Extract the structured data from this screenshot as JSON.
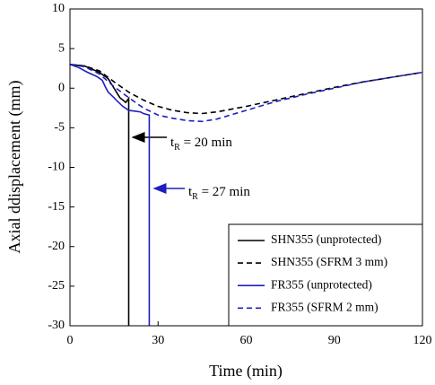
{
  "chart_data": {
    "type": "line",
    "x_label": "Time (min)",
    "y_label": "Axial ddisplacement (mm)",
    "xlim": [
      0,
      120
    ],
    "xticks": [
      0,
      30,
      60,
      90,
      120
    ],
    "ylim": [
      -30,
      10
    ],
    "yticks": [
      -30,
      -25,
      -20,
      -15,
      -10,
      -5,
      0,
      5,
      10
    ],
    "legend": "lower right",
    "series": [
      {
        "name": "SHN355 (unprotected)",
        "color": "#000000",
        "dashed": false,
        "x": [
          0,
          5,
          10,
          13,
          15,
          17,
          19,
          20,
          20
        ],
        "values": [
          3,
          2.8,
          2,
          1.2,
          0,
          -1.2,
          -1.8,
          -1.3,
          -30
        ]
      },
      {
        "name": "SHN355 (SFRM 3 mm)",
        "color": "#000000",
        "dashed": true,
        "x": [
          0,
          5,
          10,
          15,
          20,
          25,
          30,
          35,
          40,
          45,
          50,
          60,
          70,
          80,
          90,
          100,
          110,
          120
        ],
        "values": [
          3,
          2.8,
          2.2,
          0.8,
          -0.5,
          -1.5,
          -2.3,
          -2.8,
          -3.1,
          -3.2,
          -3,
          -2.3,
          -1.5,
          -0.7,
          0.1,
          0.8,
          1.4,
          2
        ]
      },
      {
        "name": "FR355 (unprotected)",
        "color": "#1f1fbf",
        "dashed": false,
        "x": [
          0,
          3,
          6,
          9,
          11,
          12,
          13,
          15,
          16,
          18,
          20,
          22,
          24,
          25,
          26,
          27,
          27
        ],
        "values": [
          3,
          2.6,
          2,
          1.5,
          1,
          0.2,
          -0.5,
          -1.2,
          -1.6,
          -2.3,
          -2.8,
          -2.9,
          -3,
          -3.2,
          -3.3,
          -3.4,
          -30
        ]
      },
      {
        "name": "FR355 (SFRM 2 mm)",
        "color": "#1f1fbf",
        "dashed": true,
        "x": [
          0,
          5,
          10,
          15,
          20,
          25,
          30,
          35,
          40,
          45,
          50,
          60,
          70,
          80,
          90,
          100,
          110,
          120
        ],
        "values": [
          3,
          2.7,
          1.8,
          0.2,
          -1.2,
          -2.5,
          -3.4,
          -3.8,
          -4.1,
          -4.2,
          -3.9,
          -2.8,
          -1.7,
          -0.8,
          0,
          0.8,
          1.4,
          2
        ]
      }
    ],
    "annotations": [
      {
        "prefix": "t",
        "subscript": "R",
        "suffix": " = 20 min",
        "color": "#000000"
      },
      {
        "prefix": "t",
        "subscript": "R",
        "suffix": " = 27 min",
        "color": "#1f1fbf"
      }
    ]
  }
}
